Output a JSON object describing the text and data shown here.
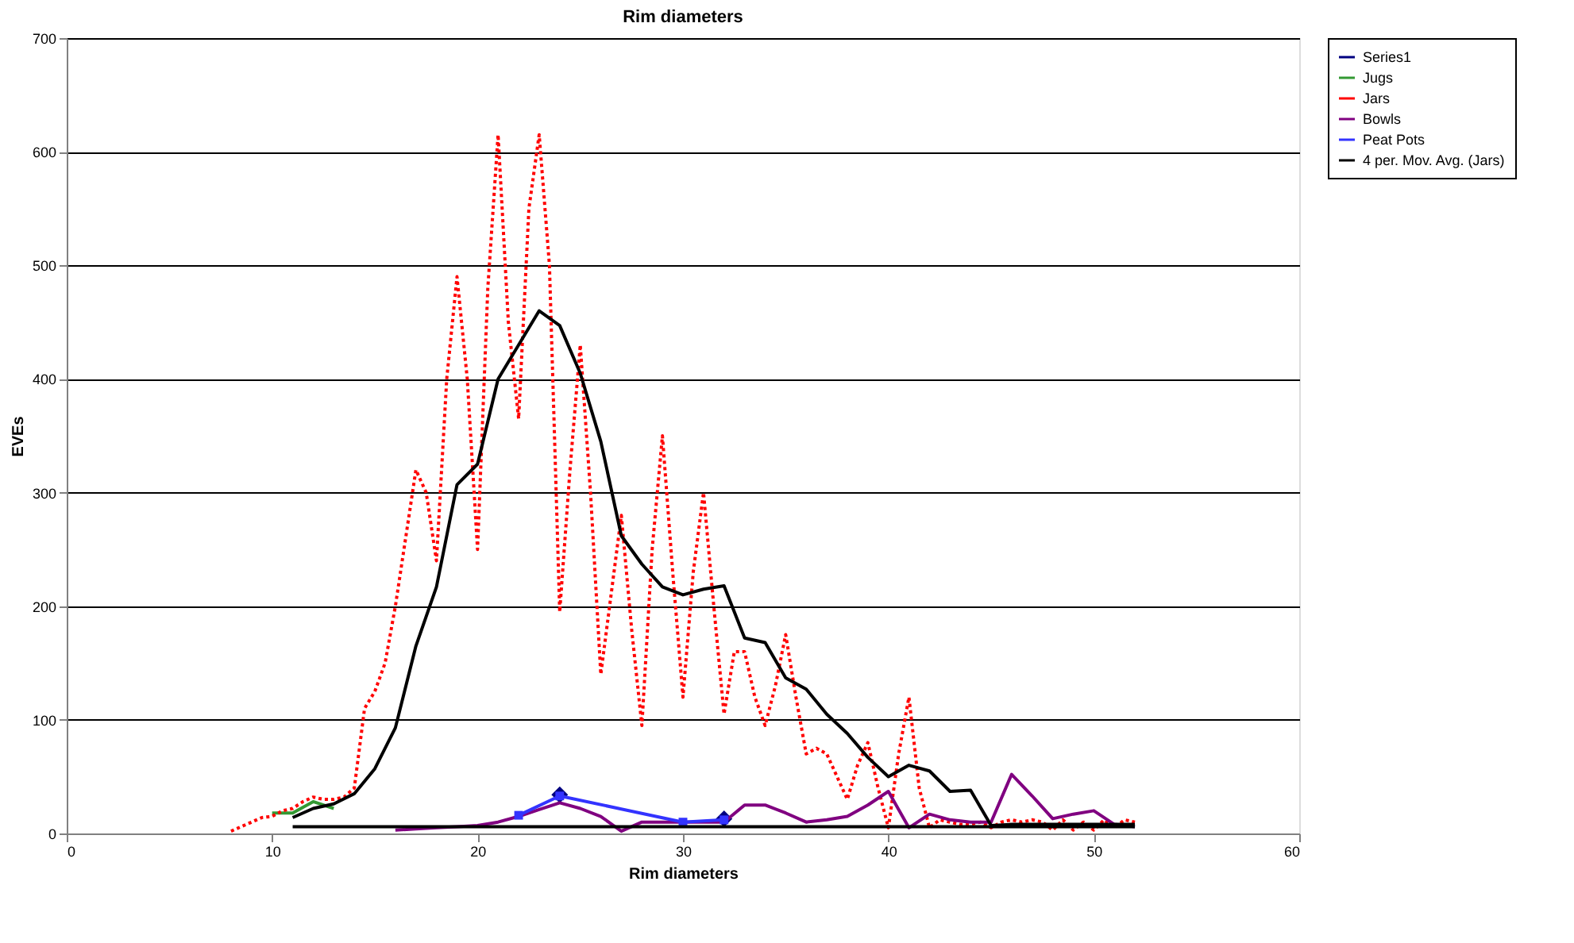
{
  "chart_data": {
    "type": "line",
    "title": "Rim diameters",
    "xlabel": "Rim diameters",
    "ylabel": "EVEs",
    "xlim": [
      0,
      60
    ],
    "xticks": [
      0,
      10,
      20,
      30,
      40,
      50,
      60
    ],
    "ylim": [
      0,
      700
    ],
    "yticks": [
      0,
      100,
      200,
      300,
      400,
      500,
      600,
      700
    ],
    "grid": "y",
    "legend": "right",
    "series": [
      {
        "name": "Series1",
        "type": "scatter",
        "marker": "diamond",
        "color": "#000080",
        "x": [
          24,
          32
        ],
        "values": [
          34,
          13
        ]
      },
      {
        "name": "Jugs",
        "color": "#339933",
        "line_style": "solid",
        "x": [
          10,
          11,
          12,
          13
        ],
        "values": [
          18,
          18,
          28,
          22
        ]
      },
      {
        "name": "Jars",
        "color": "#ff0000",
        "line_style": "dotted",
        "x": [
          8,
          8.5,
          9,
          9.5,
          10,
          10.5,
          11,
          11.5,
          12,
          12.5,
          13,
          13.5,
          14,
          14.5,
          15,
          15.5,
          16,
          16.5,
          17,
          17.5,
          18,
          18.5,
          19,
          19.5,
          20,
          20.5,
          21,
          21.5,
          22,
          22.5,
          23,
          23.5,
          24,
          24.5,
          25,
          25.5,
          26,
          26.5,
          27,
          27.5,
          28,
          28.5,
          29,
          29.5,
          30,
          30.5,
          31,
          31.5,
          32,
          32.5,
          33,
          33.5,
          34,
          34.5,
          35,
          35.5,
          36,
          36.5,
          37,
          37.5,
          38,
          38.5,
          39,
          39.5,
          40,
          40.5,
          41,
          41.5,
          42,
          42.5,
          43,
          43.5,
          44,
          44.5,
          45,
          45.5,
          46,
          46.5,
          47,
          47.5,
          48,
          48.5,
          49,
          49.5,
          50,
          50.5,
          51,
          51.5,
          52
        ],
        "values": [
          2,
          6,
          10,
          14,
          15,
          20,
          22,
          28,
          32,
          30,
          30,
          32,
          40,
          110,
          125,
          150,
          200,
          260,
          320,
          300,
          240,
          400,
          490,
          400,
          250,
          480,
          615,
          450,
          365,
          550,
          615,
          500,
          195,
          320,
          430,
          300,
          140,
          210,
          280,
          180,
          95,
          250,
          350,
          230,
          120,
          230,
          300,
          200,
          105,
          160,
          160,
          120,
          95,
          130,
          175,
          120,
          70,
          75,
          70,
          50,
          30,
          60,
          80,
          40,
          5,
          70,
          120,
          40,
          5,
          12,
          10,
          8,
          8,
          10,
          5,
          10,
          12,
          10,
          12,
          10,
          3,
          12,
          3,
          10,
          3,
          12,
          5,
          12,
          10
        ]
      },
      {
        "name": "Bowls",
        "color": "#800080",
        "line_style": "solid",
        "x": [
          16,
          17,
          18,
          19,
          20,
          21,
          22,
          23,
          24,
          25,
          26,
          27,
          28,
          29,
          30,
          31,
          32,
          33,
          34,
          35,
          36,
          37,
          38,
          39,
          40,
          41,
          42,
          43,
          44,
          45,
          46,
          47,
          48,
          49,
          50,
          51,
          52
        ],
        "values": [
          3,
          4,
          5,
          6,
          7,
          10,
          15,
          21,
          27,
          22,
          15,
          2,
          10,
          10,
          10,
          10,
          10,
          25,
          25,
          18,
          10,
          12,
          15,
          25,
          37,
          5,
          17,
          12,
          10,
          10,
          52,
          33,
          13,
          17,
          20,
          8,
          6
        ]
      },
      {
        "name": "Peat Pots",
        "color": "#3333ff",
        "line_style": "solid",
        "marker": "square",
        "x": [
          22,
          24,
          30,
          32
        ],
        "values": [
          16,
          33,
          10,
          12
        ]
      },
      {
        "name": "4 per. Mov. Avg. (Jars)",
        "color": "#000000",
        "line_style": "solid",
        "x": [
          11,
          12,
          13,
          14,
          15,
          16,
          17,
          18,
          19,
          20,
          21,
          22,
          23,
          24,
          25,
          26,
          27,
          28,
          29,
          30,
          31,
          32,
          33,
          34,
          35,
          36,
          37,
          38,
          39,
          40,
          41,
          42,
          43,
          44,
          45,
          46,
          47,
          48,
          49,
          50,
          51,
          52
        ],
        "values": [
          14,
          22,
          26,
          35,
          57,
          93,
          165,
          217,
          307,
          325,
          400,
          430,
          460,
          447,
          405,
          345,
          262,
          237,
          217,
          210,
          215,
          218,
          172,
          168,
          137,
          127,
          105,
          88,
          67,
          50,
          60,
          55,
          37,
          38,
          7,
          8,
          8,
          8,
          8,
          8,
          8,
          8
        ]
      },
      {
        "color": "#000000",
        "line_style": "solid",
        "x": [
          11,
          52
        ],
        "values": [
          6,
          6
        ]
      }
    ]
  }
}
